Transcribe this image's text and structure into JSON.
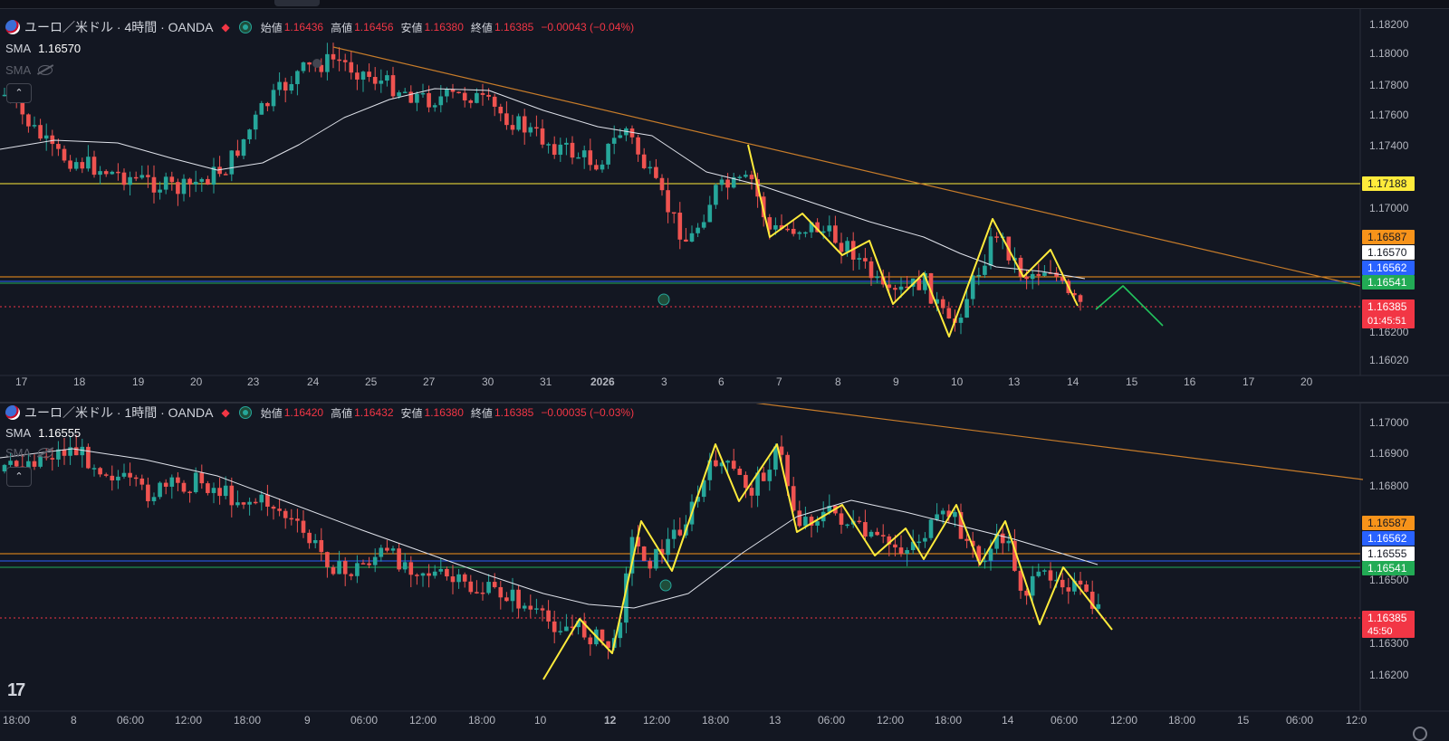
{
  "top": {
    "legend": {
      "symbol": "ユーロ／米ドル · 4時間 · OANDA",
      "open_label": "始値",
      "open": "1.16436",
      "high_label": "高値",
      "high": "1.16456",
      "low_label": "安値",
      "low": "1.16380",
      "close_label": "終値",
      "close": "1.16385",
      "change": "−0.00043 (−0.04%)"
    },
    "sma_label": "SMA",
    "sma_value": "1.16570",
    "sma2_label": "SMA",
    "price_axis": [
      "1.18200",
      "1.18000",
      "1.17800",
      "1.17600",
      "1.17400",
      "1.17000",
      "1.16200",
      "1.16020"
    ],
    "badges": [
      {
        "text": "1.17188",
        "bg": "#ffeb3b",
        "fg": "#131722"
      },
      {
        "text": "1.16587",
        "bg": "#f7931a",
        "fg": "#131722"
      },
      {
        "text": "1.16570",
        "bg": "#ffffff",
        "fg": "#131722"
      },
      {
        "text": "1.16562",
        "bg": "#2962ff",
        "fg": "#ffffff"
      },
      {
        "text": "1.16541",
        "bg": "#22ab55",
        "fg": "#ffffff"
      }
    ],
    "last_price": "1.16385",
    "countdown": "01:45:51",
    "time_axis": [
      "17",
      "18",
      "19",
      "20",
      "23",
      "24",
      "25",
      "27",
      "30",
      "31",
      "2026",
      "3",
      "6",
      "7",
      "8",
      "9",
      "10",
      "13",
      "14",
      "15",
      "16",
      "17",
      "20"
    ]
  },
  "bottom": {
    "legend": {
      "symbol": "ユーロ／米ドル · 1時間 · OANDA",
      "open_label": "始値",
      "open": "1.16420",
      "high_label": "高値",
      "high": "1.16432",
      "low_label": "安値",
      "low": "1.16380",
      "close_label": "終値",
      "close": "1.16385",
      "change": "−0.00035 (−0.03%)"
    },
    "sma_label": "SMA",
    "sma_value": "1.16555",
    "sma2_label": "SMA",
    "price_axis": [
      "1.17000",
      "1.16900",
      "1.16800",
      "1.16500",
      "1.16300",
      "1.16200"
    ],
    "badges": [
      {
        "text": "1.16587",
        "bg": "#f7931a",
        "fg": "#131722"
      },
      {
        "text": "1.16562",
        "bg": "#2962ff",
        "fg": "#ffffff"
      },
      {
        "text": "1.16555",
        "bg": "#ffffff",
        "fg": "#131722"
      },
      {
        "text": "1.16541",
        "bg": "#22ab55",
        "fg": "#ffffff"
      }
    ],
    "last_price": "1.16385",
    "countdown": "45:50",
    "time_axis": [
      "18:00",
      "8",
      "06:00",
      "12:00",
      "18:00",
      "9",
      "06:00",
      "12:00",
      "18:00",
      "10",
      "12",
      "12:00",
      "18:00",
      "13",
      "06:00",
      "12:00",
      "18:00",
      "14",
      "06:00",
      "12:00",
      "18:00",
      "15",
      "06:00",
      "12:0"
    ]
  },
  "colors": {
    "bg": "#131722",
    "up": "#26a69a",
    "down": "#ef5350",
    "sma": "#e0e3eb",
    "trend": "#c77c2a",
    "zigzag": "#ffeb3b",
    "proj": "#22c55e",
    "last": "#f23645"
  }
}
